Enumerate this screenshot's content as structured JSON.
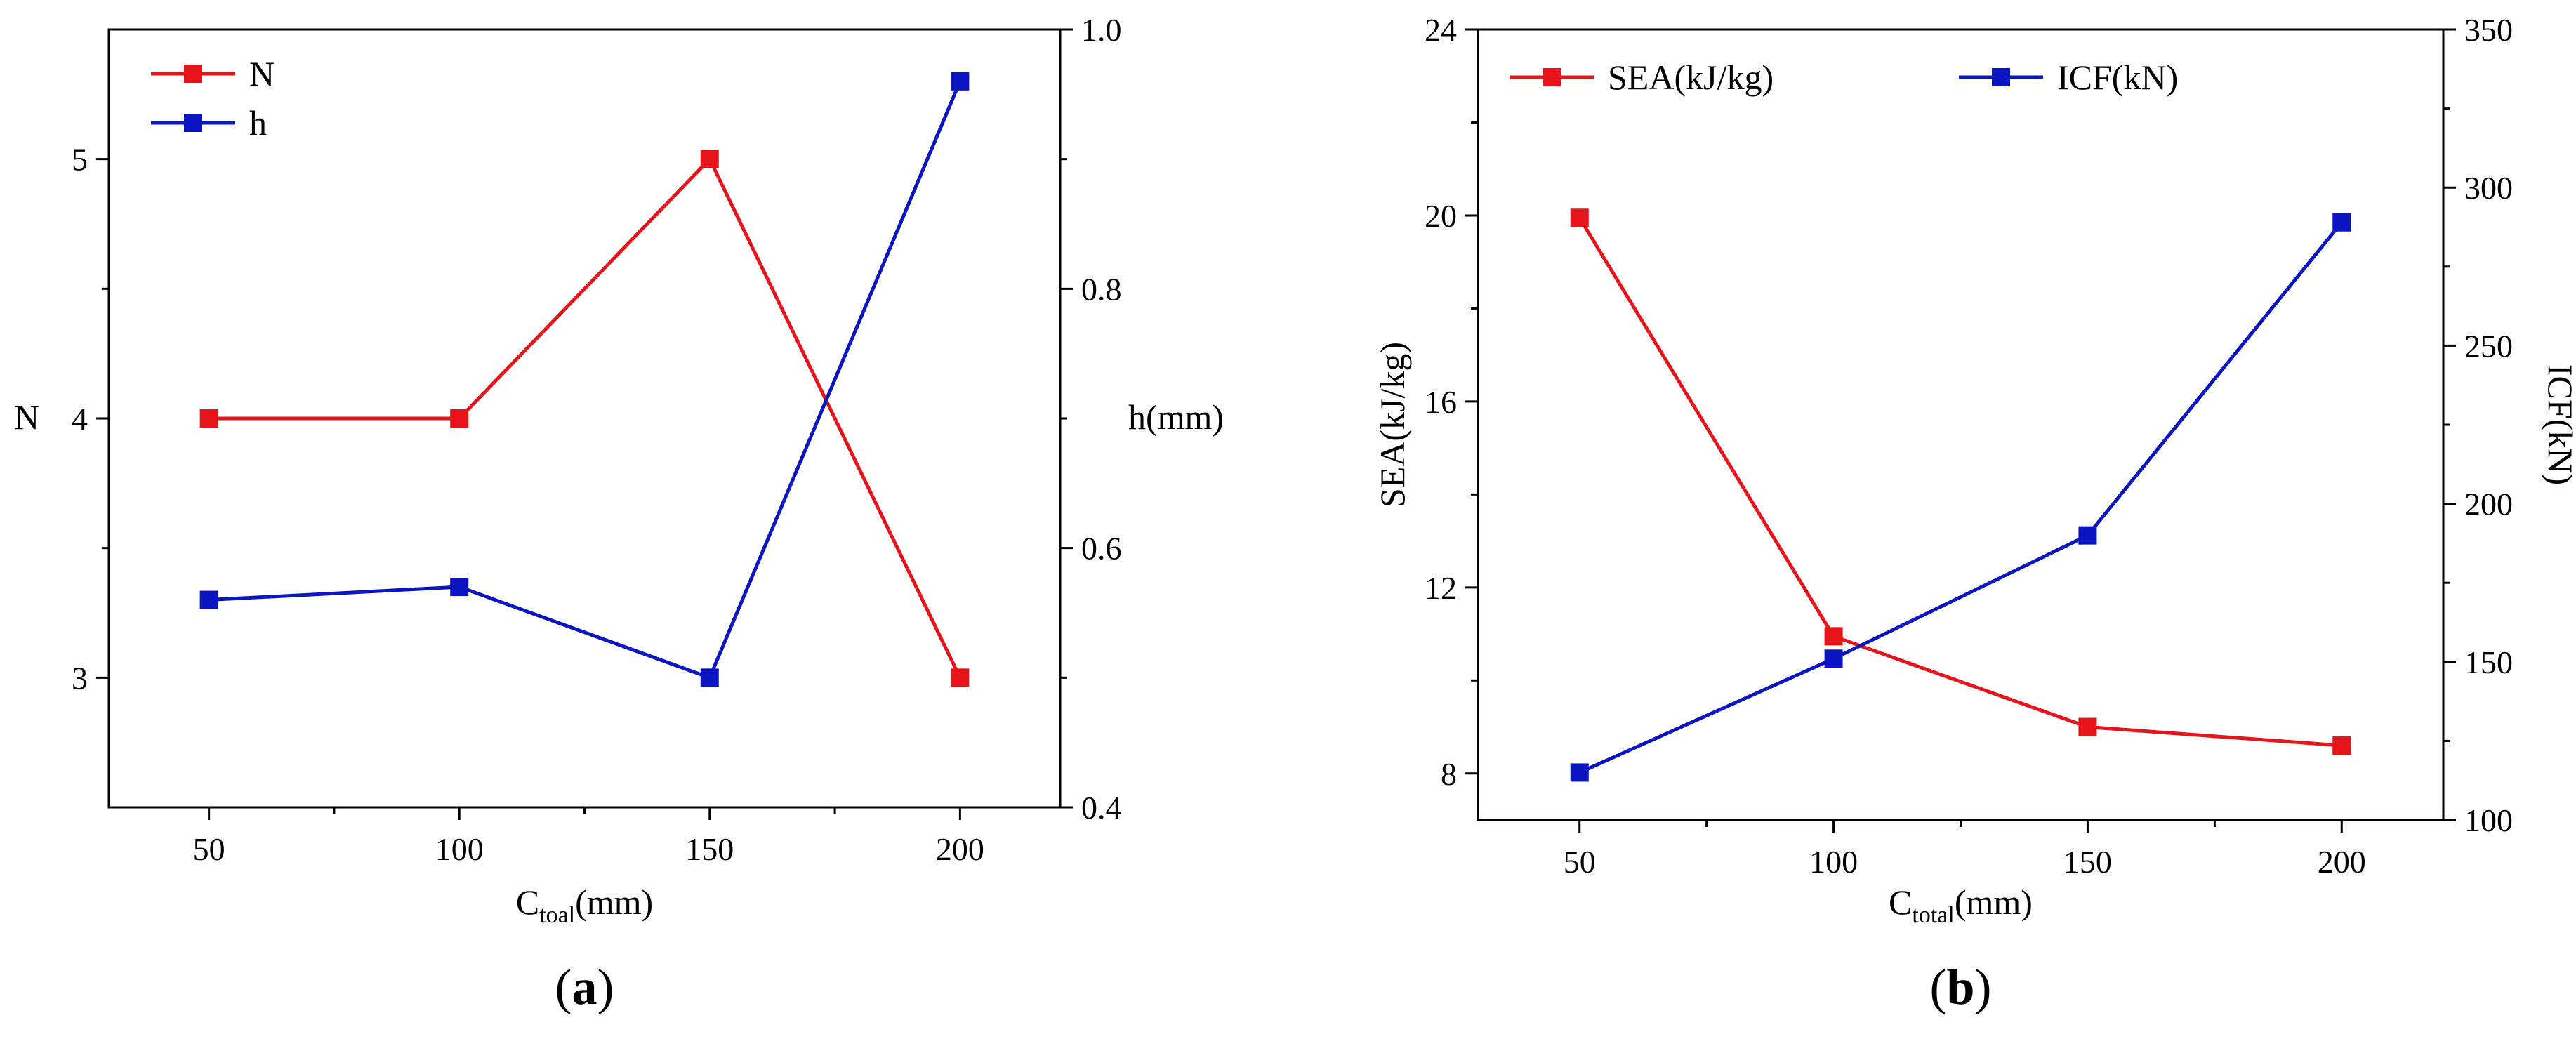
{
  "chart_data": [
    {
      "type": "line",
      "panel_label": "a",
      "categories": [
        "50",
        "100",
        "150",
        "200"
      ],
      "x": [
        50,
        100,
        150,
        200
      ],
      "xlim": [
        30,
        220
      ],
      "xlabel_main": "C",
      "xlabel_sub": "toal",
      "xlabel_rest": "(mm)",
      "xtick_labels": [
        "50",
        "100",
        "150",
        "200"
      ],
      "series": [
        {
          "name": "N",
          "axis": "left",
          "color": "#e8141b",
          "values": [
            4,
            4,
            5,
            3
          ]
        },
        {
          "name": "h",
          "axis": "right",
          "color": "#0c15c2",
          "values": [
            0.56,
            0.57,
            0.5,
            0.96
          ]
        }
      ],
      "left_axis": {
        "label": "N",
        "ylim": [
          2.5,
          5.5
        ],
        "ticks": [
          3,
          4,
          5
        ],
        "tick_labels": [
          "3",
          "4",
          "5"
        ]
      },
      "right_axis": {
        "label": "h(mm)",
        "ylim": [
          0.4,
          1.0
        ],
        "ticks": [
          0.4,
          0.6,
          0.8,
          1.0
        ],
        "tick_labels": [
          "0.4",
          "0.6",
          "0.8",
          "1.0"
        ]
      },
      "legend": {
        "placement": "top-left",
        "entries": [
          "N",
          "h"
        ]
      },
      "grid": false
    },
    {
      "type": "line",
      "panel_label": "b",
      "categories": [
        "50",
        "100",
        "150",
        "200"
      ],
      "x": [
        50,
        100,
        150,
        200
      ],
      "xlim": [
        30,
        220
      ],
      "xlabel_main": "C",
      "xlabel_sub": "total",
      "xlabel_rest": "(mm)",
      "xtick_labels": [
        "50",
        "100",
        "150",
        "200"
      ],
      "series": [
        {
          "name": "SEA(kJ/kg)",
          "axis": "left",
          "color": "#e8141b",
          "values": [
            19.95,
            10.95,
            9.0,
            8.6
          ]
        },
        {
          "name": "ICF(kN)",
          "axis": "right",
          "color": "#0c15c2",
          "values": [
            115,
            151,
            190,
            289
          ]
        }
      ],
      "left_axis": {
        "label": "SEA(kJ/kg)",
        "ylim": [
          7,
          24
        ],
        "ticks": [
          8,
          12,
          16,
          20,
          24
        ],
        "tick_labels": [
          "8",
          "12",
          "16",
          "20",
          "24"
        ]
      },
      "right_axis": {
        "label": "ICF(kN)",
        "ylim": [
          100,
          350
        ],
        "ticks": [
          100,
          150,
          200,
          250,
          300,
          350
        ],
        "tick_labels": [
          "100",
          "150",
          "200",
          "250",
          "300",
          "350"
        ]
      },
      "legend": {
        "placement": "top-left",
        "entries": [
          "SEA(kJ/kg)",
          "ICF(kN)"
        ]
      },
      "grid": false
    }
  ]
}
